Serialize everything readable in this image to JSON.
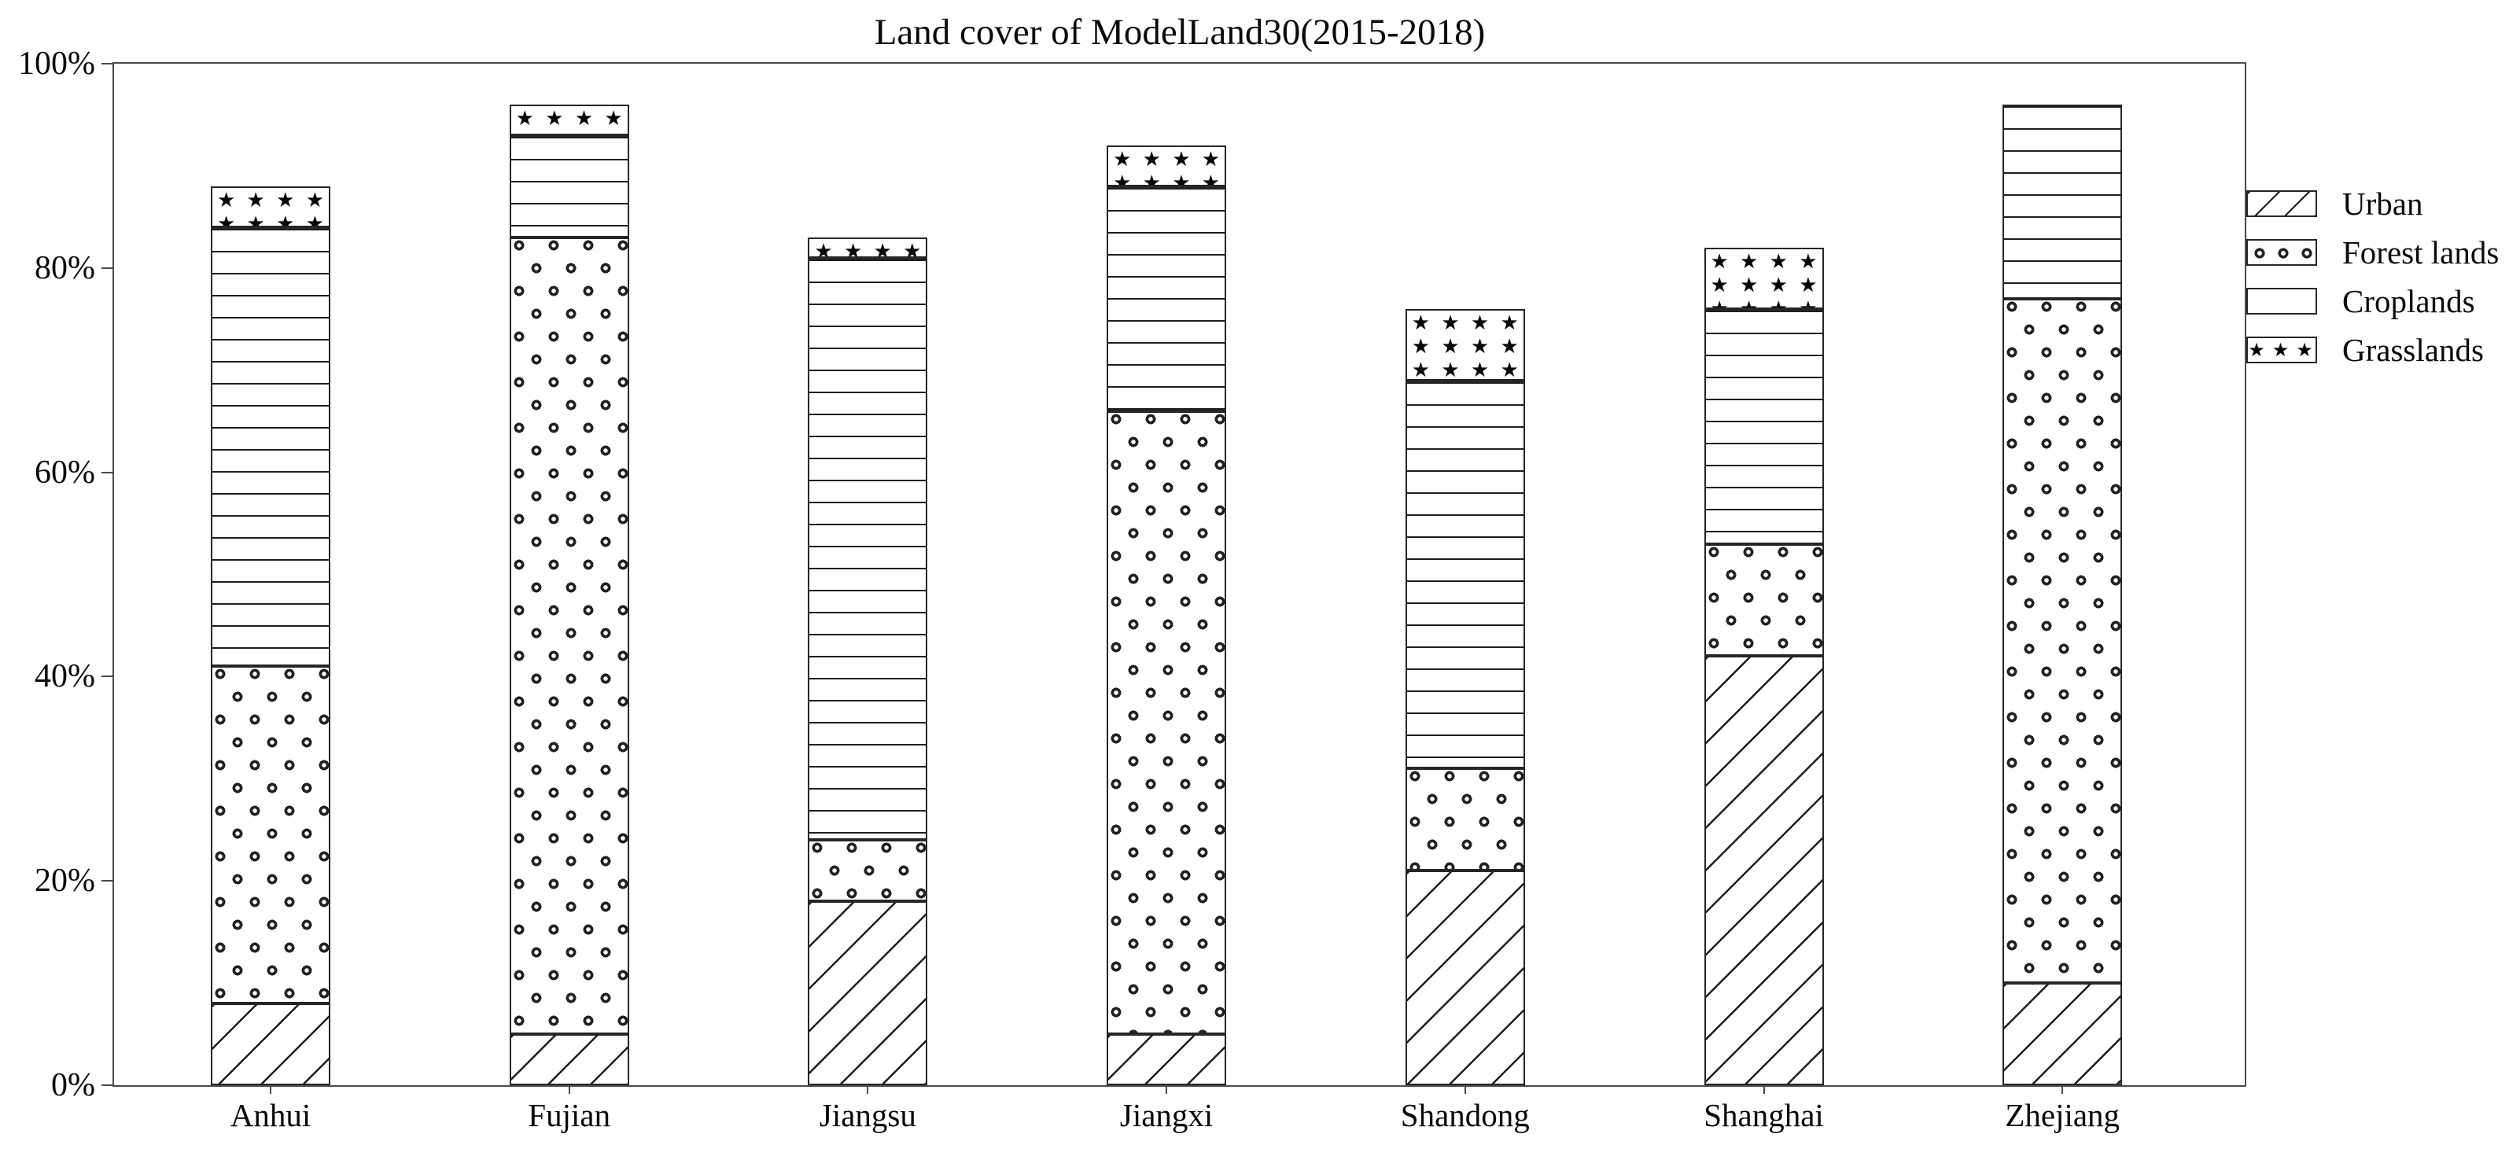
{
  "chart_data": {
    "type": "bar",
    "stacked": true,
    "title": "Land cover of ModelLand30(2015-2018)",
    "categories": [
      "Anhui",
      "Fujian",
      "Jiangsu",
      "Jiangxi",
      "Shandong",
      "Shanghai",
      "Zhejiang"
    ],
    "series": [
      {
        "name": "Urban",
        "pattern": "diagonal-hatch",
        "values": [
          8,
          5,
          18,
          5,
          21,
          42,
          10
        ]
      },
      {
        "name": "Forest lands",
        "pattern": "circles",
        "values": [
          33,
          78,
          6,
          61,
          10,
          11,
          67
        ]
      },
      {
        "name": "Croplands",
        "pattern": "horizontal-lines",
        "values": [
          43,
          10,
          57,
          22,
          38,
          23,
          19
        ]
      },
      {
        "name": "Grasslands",
        "pattern": "stars",
        "values": [
          4,
          3,
          2,
          4,
          7,
          6,
          0
        ]
      }
    ],
    "stack_totals_percent": [
      88,
      96,
      83,
      92,
      76,
      82,
      96
    ],
    "ylim": [
      0,
      100
    ],
    "ytick_labels": [
      "0%",
      "20%",
      "40%",
      "60%",
      "80%",
      "100%"
    ],
    "grid": false,
    "legend_position": "right",
    "legend_entries": [
      "Urban",
      "Forest lands",
      "Croplands",
      "Grasslands"
    ],
    "colors": {
      "foreground": "#000000",
      "axis": "#4a4a4a",
      "background": "#ffffff"
    }
  }
}
